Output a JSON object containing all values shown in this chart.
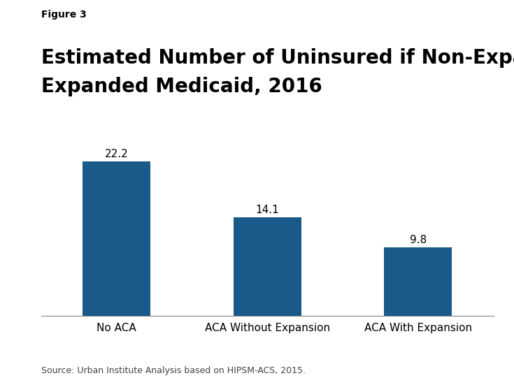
{
  "categories": [
    "No ACA",
    "ACA Without Expansion",
    "ACA With Expansion"
  ],
  "values": [
    22.2,
    14.1,
    9.8
  ],
  "bar_color": "#1a5a8a",
  "background_color": "#ffffff",
  "figure3_label": "Figure 3",
  "title_line1": "Estimated Number of Uninsured if Non-Expansion States",
  "title_line2": "Expanded Medicaid, 2016",
  "source_text": "Source: Urban Institute Analysis based on HIPSM-ACS, 2015.",
  "ylim": [
    0,
    26
  ],
  "bar_width": 0.45,
  "label_fontsize": 11,
  "value_fontsize": 11,
  "title_fontsize": 20,
  "fig3_fontsize": 10,
  "source_fontsize": 9,
  "logo_bg_color": "#1e4d7b",
  "logo_text_color": "#ffffff"
}
